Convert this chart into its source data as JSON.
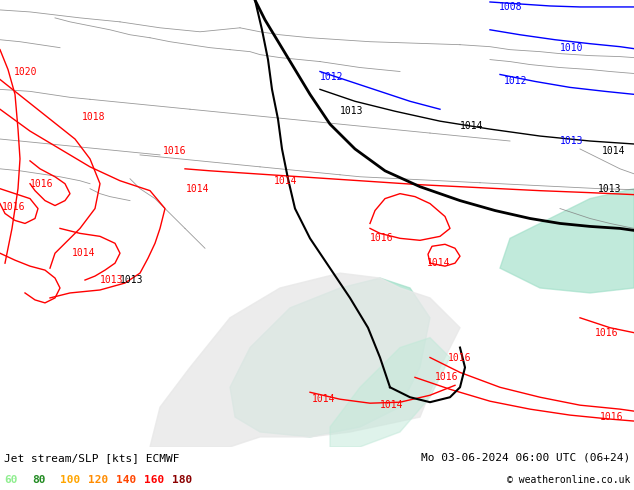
{
  "title_left": "Jet stream/SLP [kts] ECMWF",
  "title_right": "Mo 03-06-2024 06:00 UTC (06+24)",
  "copyright": "© weatheronline.co.uk",
  "legend_values": [
    "60",
    "80",
    "100",
    "120",
    "140",
    "160",
    "180"
  ],
  "legend_colors": [
    "#90ee90",
    "#228b22",
    "#ffa500",
    "#ff8c00",
    "#ff4500",
    "#ff0000",
    "#8b0000"
  ],
  "bg_color": "#b5e57a",
  "fig_width": 6.34,
  "fig_height": 4.9,
  "dpi": 100
}
